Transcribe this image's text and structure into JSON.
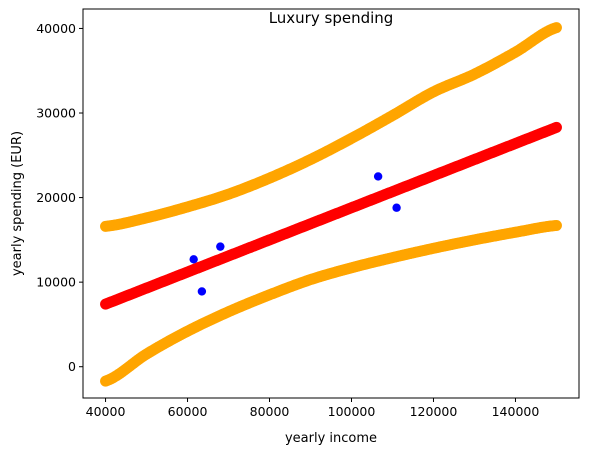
{
  "chart_data": {
    "type": "scatter",
    "title": "Luxury spending",
    "xlabel": "yearly income",
    "ylabel": "yearly spending (EUR)",
    "xlim": [
      34500,
      155500
    ],
    "ylim": [
      -3700,
      42300
    ],
    "x_ticks": [
      40000,
      60000,
      80000,
      100000,
      120000,
      140000
    ],
    "y_ticks": [
      0,
      10000,
      20000,
      30000,
      40000
    ],
    "grid": false,
    "series": [
      {
        "kind": "points",
        "color": "#0000ff",
        "points": [
          {
            "x": 61500,
            "y": 12700
          },
          {
            "x": 63500,
            "y": 8900
          },
          {
            "x": 68000,
            "y": 14200
          },
          {
            "x": 106500,
            "y": 22500
          },
          {
            "x": 111000,
            "y": 18800
          }
        ]
      },
      {
        "kind": "band",
        "color": "#ffa500",
        "x": [
          40000,
          50000,
          60000,
          70000,
          80000,
          90000,
          100000,
          110000,
          120000,
          130000,
          140000,
          150000
        ],
        "values": [
          16600,
          17600,
          18900,
          20400,
          22300,
          24500,
          27000,
          29700,
          32500,
          34600,
          37200,
          40100
        ]
      },
      {
        "kind": "fit",
        "color": "#ff0000",
        "x": [
          40000,
          150000
        ],
        "values": [
          7400,
          28300
        ]
      },
      {
        "kind": "band",
        "color": "#ffa500",
        "x": [
          40000,
          50000,
          60000,
          70000,
          80000,
          90000,
          100000,
          110000,
          120000,
          130000,
          140000,
          150000
        ],
        "values": [
          -1700,
          1500,
          4200,
          6500,
          8500,
          10300,
          11700,
          12900,
          14000,
          15000,
          15900,
          16700
        ]
      }
    ]
  }
}
